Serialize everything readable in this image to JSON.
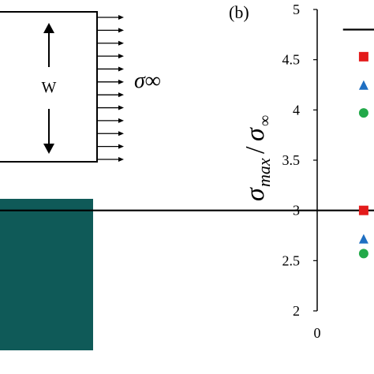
{
  "panel_a": {
    "width_label": "W",
    "stress_label": "σ∞",
    "arrow_count": 12
  },
  "panel_b": {
    "panel_label": "(b)",
    "ylabel_numerator": "σ",
    "ylabel_numerator_sub": "max",
    "ylabel_denominator": "σ",
    "ylabel_denominator_sub": "∞"
  },
  "colors": {
    "plate_fill": "#0f5a58",
    "series_square": "#e31b1b",
    "series_triangle": "#1f6fc2",
    "series_circle": "#23a94a"
  },
  "chart_data": {
    "type": "scatter",
    "title": "",
    "xlabel": "",
    "ylabel": "σmax/σ∞",
    "ylim": [
      2,
      5
    ],
    "yticks": [
      "2",
      "2.5",
      "3",
      "3.5",
      "4",
      "4.5",
      "5"
    ],
    "xticks": [
      "0"
    ],
    "x_visible_range": [
      0,
      0.55
    ],
    "reference_lines": [
      {
        "y": 4.8,
        "x_start": 0.25
      },
      {
        "y": 3.0,
        "x_start": 0
      }
    ],
    "series": [
      {
        "marker": "square",
        "color": "#e31b1b",
        "points": [
          [
            0.45,
            4.53
          ],
          [
            0.45,
            3.0
          ]
        ]
      },
      {
        "marker": "triangle",
        "color": "#1f6fc2",
        "points": [
          [
            0.45,
            4.24
          ],
          [
            0.45,
            2.71
          ]
        ]
      },
      {
        "marker": "circle",
        "color": "#23a94a",
        "points": [
          [
            0.45,
            3.97
          ],
          [
            0.45,
            2.57
          ]
        ]
      }
    ]
  }
}
